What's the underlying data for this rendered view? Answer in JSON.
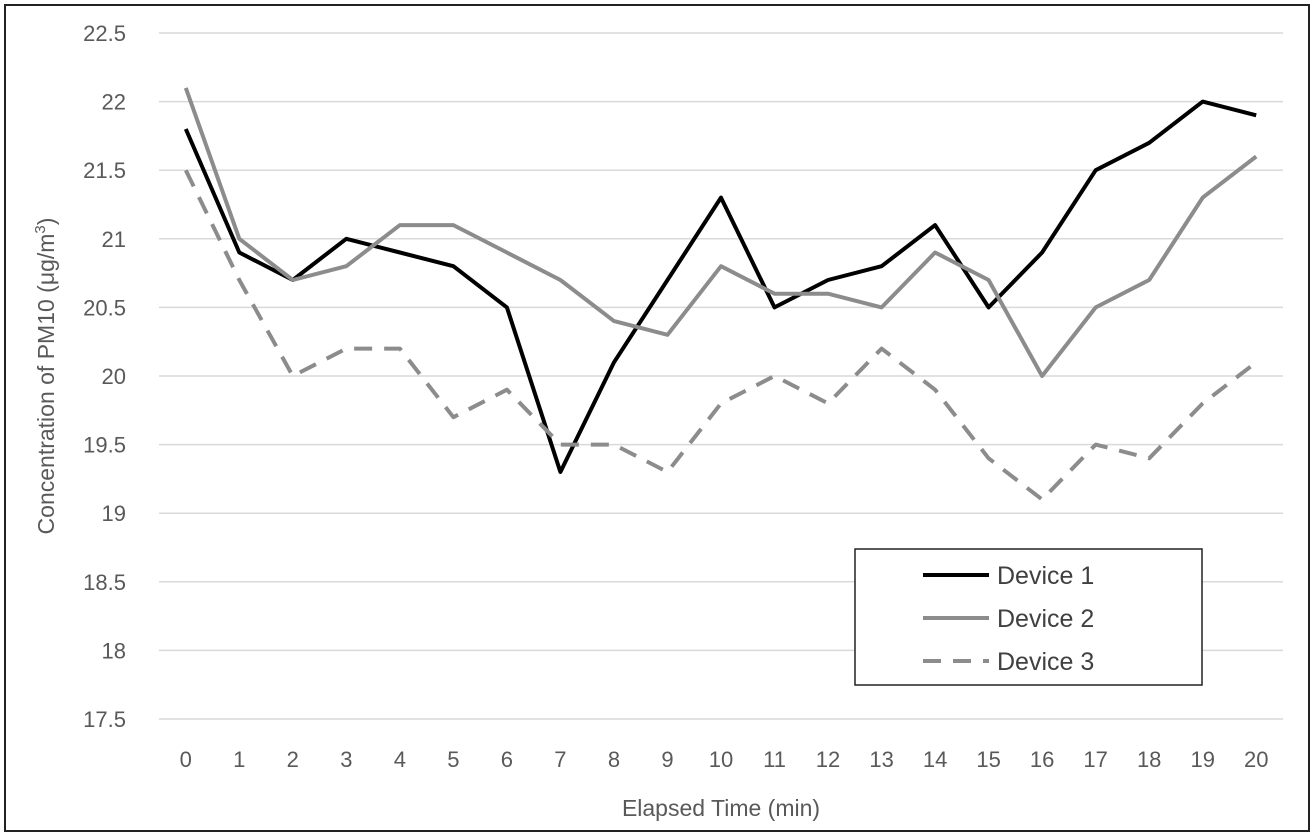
{
  "chart_data": {
    "type": "line",
    "title": "",
    "xlabel": "Elapsed Time (min)",
    "ylabel": "Concentration of PM10 (μg/m³)",
    "ylabel_parts": [
      "Concentration of PM10 (μg/m",
      "3",
      ")"
    ],
    "x": [
      0,
      1,
      2,
      3,
      4,
      5,
      6,
      7,
      8,
      9,
      10,
      11,
      12,
      13,
      14,
      15,
      16,
      17,
      18,
      19,
      20
    ],
    "xlim": [
      0,
      20
    ],
    "ylim": [
      17.5,
      22.5
    ],
    "y_ticks": [
      17.5,
      18,
      18.5,
      19,
      19.5,
      20,
      20.5,
      21,
      21.5,
      22,
      22.5
    ],
    "grid": true,
    "legend_position": "bottom-right",
    "series": [
      {
        "name": "Device 1",
        "color": "#000000",
        "dash": "solid",
        "values": [
          21.8,
          20.9,
          20.7,
          21.0,
          20.9,
          20.8,
          20.5,
          19.3,
          20.1,
          20.7,
          21.3,
          20.5,
          20.7,
          20.8,
          21.1,
          20.5,
          20.9,
          21.5,
          21.7,
          22.0,
          21.9
        ]
      },
      {
        "name": "Device 2",
        "color": "#8c8c8c",
        "dash": "solid",
        "values": [
          22.1,
          21.0,
          20.7,
          20.8,
          21.1,
          21.1,
          20.9,
          20.7,
          20.4,
          20.3,
          20.8,
          20.6,
          20.6,
          20.5,
          20.9,
          20.7,
          20.0,
          20.5,
          20.7,
          21.3,
          21.6
        ]
      },
      {
        "name": "Device 3",
        "color": "#8c8c8c",
        "dash": "dashed",
        "values": [
          21.5,
          20.7,
          20.0,
          20.2,
          20.2,
          19.7,
          19.9,
          19.5,
          19.5,
          19.3,
          19.8,
          20.0,
          19.8,
          20.2,
          19.9,
          19.4,
          19.1,
          19.5,
          19.4,
          19.8,
          20.1
        ]
      }
    ]
  }
}
